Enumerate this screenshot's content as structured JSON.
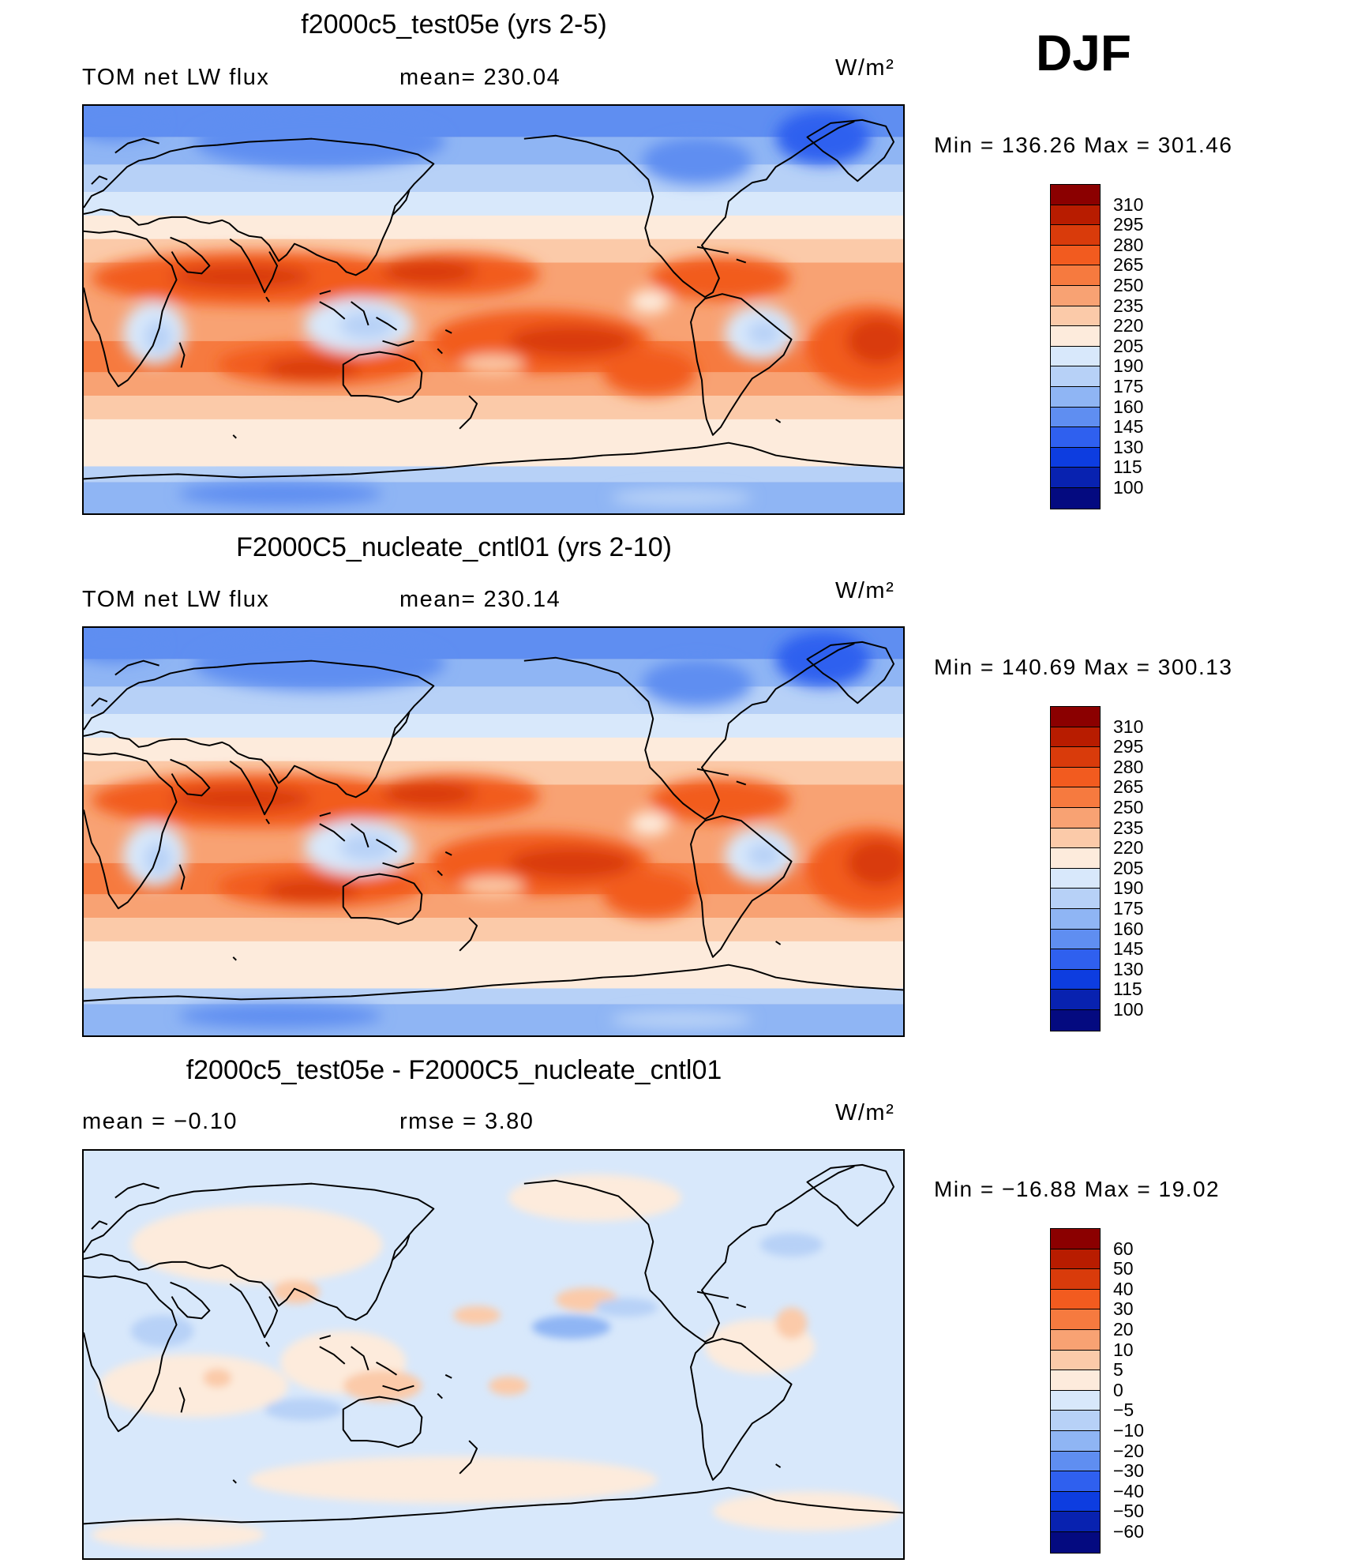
{
  "season": "DJF",
  "panels": [
    {
      "title": "f2000c5_test05e (yrs 2-5)",
      "left_label": "TOM net LW flux",
      "center_label": "mean=  230.04",
      "units": "W/m²",
      "minmax": "Min  =  136.26  Max  =  301.46",
      "levels": [
        "310",
        "295",
        "280",
        "265",
        "250",
        "235",
        "220",
        "205",
        "190",
        "175",
        "160",
        "145",
        "130",
        "115",
        "100"
      ],
      "colors": [
        "#8b0000",
        "#b81c00",
        "#d93b0b",
        "#f25b1f",
        "#f67a3f",
        "#f8a273",
        "#fbcaa9",
        "#fdebdc",
        "#d8e8fb",
        "#b7d1f7",
        "#8fb5f4",
        "#5f8ef1",
        "#2f60ef",
        "#0d3de0",
        "#0822b0",
        "#040a80"
      ]
    },
    {
      "title": "F2000C5_nucleate_cntl01 (yrs 2-10)",
      "left_label": "TOM net LW flux",
      "center_label": "mean=  230.14",
      "units": "W/m²",
      "minmax": "Min  =  140.69  Max  =  300.13",
      "levels": [
        "310",
        "295",
        "280",
        "265",
        "250",
        "235",
        "220",
        "205",
        "190",
        "175",
        "160",
        "145",
        "130",
        "115",
        "100"
      ],
      "colors": [
        "#8b0000",
        "#b81c00",
        "#d93b0b",
        "#f25b1f",
        "#f67a3f",
        "#f8a273",
        "#fbcaa9",
        "#fdebdc",
        "#d8e8fb",
        "#b7d1f7",
        "#8fb5f4",
        "#5f8ef1",
        "#2f60ef",
        "#0d3de0",
        "#0822b0",
        "#040a80"
      ]
    },
    {
      "title": "f2000c5_test05e - F2000C5_nucleate_cntl01",
      "left_label": "mean  =     −0.10",
      "center_label": "rmse  =     3.80",
      "units": "W/m²",
      "minmax": "Min  =  −16.88  Max  =     19.02",
      "levels": [
        "60",
        "50",
        "40",
        "30",
        "20",
        "10",
        "5",
        "0",
        "−5",
        "−10",
        "−20",
        "−30",
        "−40",
        "−50",
        "−60"
      ],
      "colors": [
        "#8b0000",
        "#b81c00",
        "#d93b0b",
        "#f25b1f",
        "#f67a3f",
        "#f8a273",
        "#fbcaa9",
        "#fdebdc",
        "#d8e8fb",
        "#b7d1f7",
        "#8fb5f4",
        "#5f8ef1",
        "#2f60ef",
        "#0d3de0",
        "#0822b0",
        "#040a80"
      ]
    }
  ]
}
